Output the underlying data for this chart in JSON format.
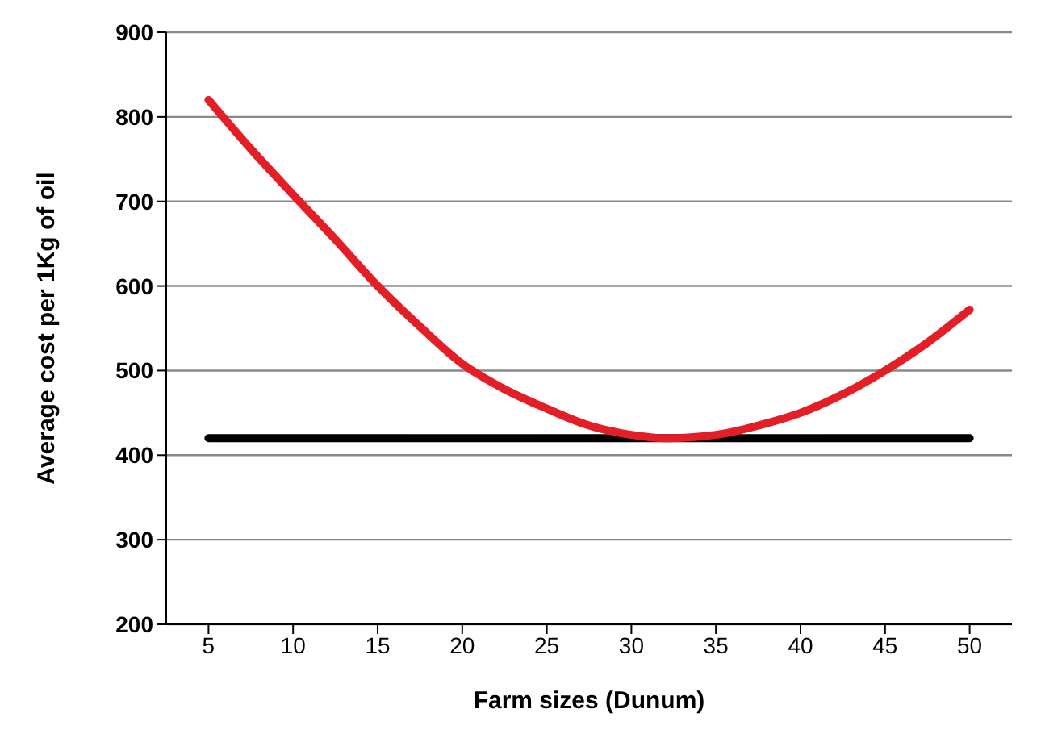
{
  "chart_data": {
    "type": "line",
    "xlabel": "Farm sizes (Dunum)",
    "ylabel": "Average cost per 1Kg of oil",
    "xlim": [
      2.5,
      52.5
    ],
    "xticks": [
      5,
      10,
      15,
      20,
      25,
      30,
      35,
      40,
      45,
      50
    ],
    "ylim": [
      200,
      900
    ],
    "yticks": [
      200,
      300,
      400,
      500,
      600,
      700,
      800,
      900
    ],
    "grid": "y",
    "legend": false,
    "marker": "none",
    "series": [
      {
        "color": "#e41e26",
        "x": [
          5,
          7.5,
          10,
          12.5,
          15,
          17.5,
          20,
          22.5,
          25,
          27.5,
          30,
          32,
          35,
          37.5,
          40,
          42.5,
          45,
          47.5,
          50
        ],
        "values": [
          820,
          762,
          708,
          655,
          600,
          552,
          508,
          478,
          455,
          435,
          424,
          420,
          424,
          435,
          450,
          472,
          500,
          533,
          572
        ]
      },
      {
        "color": "#000000",
        "x": [
          5,
          50
        ],
        "values": [
          420,
          420
        ]
      }
    ]
  }
}
